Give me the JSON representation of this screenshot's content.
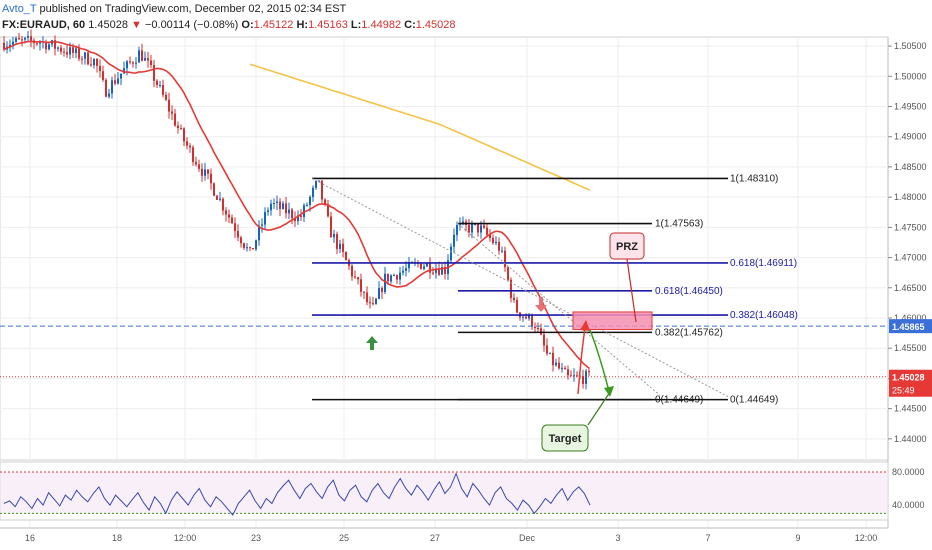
{
  "header": {
    "author": "Avto_T",
    "published": "published on TradingView.com, December 02, 2015 02:34 EST",
    "symbol": "FX:EURAUD, 60",
    "last": "1.45028",
    "change_arrow": "▼",
    "change": "−0.00114 (−0.08%)",
    "o_label": "O:",
    "o": "1.45122",
    "h_label": "H:",
    "h": "1.45163",
    "l_label": "L:",
    "l": "1.44982",
    "c_label": "C:",
    "c": "1.45028"
  },
  "chart_data": [
    {
      "type": "line",
      "title": "FX:EURAUD, 60",
      "series": [],
      "price_axis": {
        "ticks": [
          "1.50500",
          "1.50000",
          "1.49500",
          "1.49000",
          "1.48500",
          "1.48000",
          "1.47500",
          "1.47000",
          "1.46500",
          "1.46000",
          "1.45500",
          "1.45000",
          "1.44500",
          "1.44000"
        ],
        "range": [
          1.4365,
          1.5065
        ]
      },
      "time_axis": {
        "ticks": [
          "16",
          "18",
          "12:00",
          "23",
          "25",
          "27",
          "Dec",
          "3",
          "7",
          "9",
          "12:00"
        ]
      },
      "price_tags": {
        "blue_line": "1.45865",
        "last": "1.45028",
        "countdown": "25:49"
      },
      "fib_levels": [
        {
          "label": "1(1.48310)",
          "price": 1.4831,
          "color": "#111111"
        },
        {
          "label": "1(1.47563)",
          "price": 1.47563,
          "color": "#111111"
        },
        {
          "label": "0.618(1.46911)",
          "price": 1.46911,
          "color": "#1a237e"
        },
        {
          "label": "0.618(1.46450)",
          "price": 1.4645,
          "color": "#1a237e"
        },
        {
          "label": "0.382(1.46048)",
          "price": 1.46048,
          "color": "#1a237e"
        },
        {
          "label": "0.382(1.45762)",
          "price": 1.45762,
          "color": "#111111"
        },
        {
          "label": "0(1.44649)",
          "price": 1.44649,
          "color": "#111111"
        },
        {
          "label": "0(1.44649)",
          "price": 1.44649,
          "color": "#111111"
        }
      ],
      "annotations": {
        "prz": "PRZ",
        "target": "Target"
      },
      "colors": {
        "up": "#1565c0",
        "down": "#d32f2f",
        "ma_fast": "#e53935",
        "ma_slow": "#f5c242",
        "fib_blue": "#1a1aa8",
        "prz_fill": "#f48fb1"
      },
      "grid": true
    },
    {
      "type": "line",
      "title": "",
      "rsi_axis": {
        "ticks": [
          "80.0000",
          "40.0000"
        ]
      },
      "values": [
        42,
        45,
        38,
        50,
        44,
        36,
        48,
        40,
        55,
        47,
        39,
        52,
        46,
        58,
        50,
        44,
        54,
        62,
        48,
        40,
        52,
        45,
        38,
        47,
        55,
        43,
        34,
        50,
        42,
        30,
        46,
        56,
        48,
        40,
        52,
        60,
        46,
        38,
        50,
        44,
        36,
        28,
        42,
        50,
        58,
        45,
        36,
        48,
        42,
        55,
        63,
        70,
        58,
        48,
        60,
        66,
        56,
        48,
        62,
        70,
        52,
        45,
        58,
        64,
        50,
        44,
        58,
        66,
        55,
        48,
        62,
        72,
        60,
        52,
        64,
        56,
        46,
        58,
        68,
        54,
        62,
        78,
        60,
        50,
        66,
        58,
        48,
        40,
        55,
        62,
        48,
        42,
        34,
        46,
        40,
        30,
        38,
        48,
        42,
        52,
        60,
        46,
        56,
        62,
        54,
        40
      ]
    }
  ]
}
